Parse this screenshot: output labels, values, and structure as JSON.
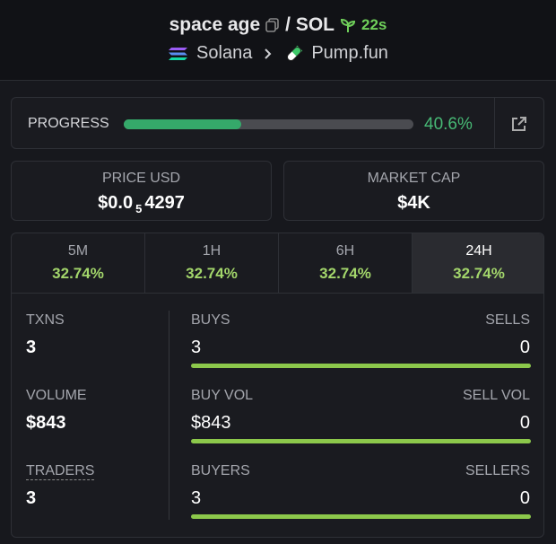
{
  "header": {
    "token_name": "space age",
    "quote": "/ SOL",
    "age": "22s",
    "chain": "Solana",
    "platform": "Pump.fun"
  },
  "progress": {
    "label": "PROGRESS",
    "value": 40.6,
    "value_label": "40.6%"
  },
  "price": {
    "label": "PRICE USD",
    "prefix": "$0.0",
    "zeros": "5",
    "digits": "4297"
  },
  "market_cap": {
    "label": "MARKET CAP",
    "value": "$4K"
  },
  "tabs": [
    {
      "label": "5M",
      "change": "32.74%"
    },
    {
      "label": "1H",
      "change": "32.74%"
    },
    {
      "label": "6H",
      "change": "32.74%"
    },
    {
      "label": "24H",
      "change": "32.74%"
    }
  ],
  "stats": {
    "left": [
      {
        "label": "TXNS",
        "value": "3"
      },
      {
        "label": "VOLUME",
        "value": "$843"
      },
      {
        "label": "TRADERS",
        "value": "3"
      }
    ],
    "right": [
      {
        "left_label": "BUYS",
        "right_label": "SELLS",
        "left_value": "3",
        "right_value": "0"
      },
      {
        "left_label": "BUY VOL",
        "right_label": "SELL VOL",
        "left_value": "$843",
        "right_value": "0"
      },
      {
        "left_label": "BUYERS",
        "right_label": "SELLERS",
        "left_value": "3",
        "right_value": "0"
      }
    ]
  }
}
